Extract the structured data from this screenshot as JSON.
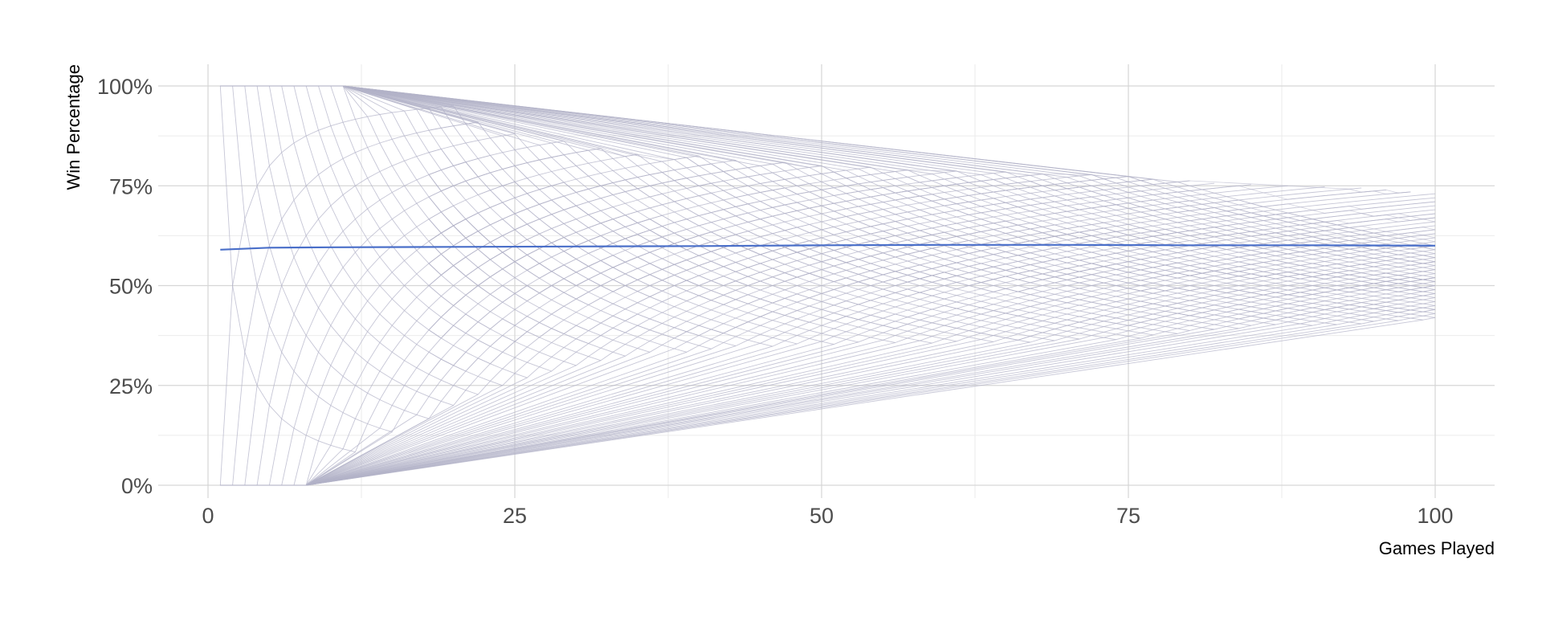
{
  "chart_data": {
    "type": "line",
    "title": "",
    "xlabel": "Games Played",
    "ylabel": "Win Percentage",
    "xlim": [
      -4,
      105
    ],
    "ylim": [
      -4,
      105
    ],
    "x_ticks": [
      0,
      25,
      50,
      75,
      100
    ],
    "x_tick_labels": [
      "0",
      "25",
      "50",
      "75",
      "100"
    ],
    "y_ticks": [
      0,
      25,
      50,
      75,
      100
    ],
    "y_tick_labels": [
      "0%",
      "25%",
      "50%",
      "75%",
      "100%"
    ],
    "grid": true,
    "legend": "none",
    "games_total": 100,
    "colors": {
      "envelope": "#b3b3c8",
      "mean": "#4a6fc9",
      "grid_major": "#d6d6d6",
      "grid_minor": "#ebebeb"
    },
    "series": [
      {
        "x": [
          1,
          5,
          10,
          20,
          30,
          40,
          50,
          60,
          70,
          80,
          90,
          100
        ],
        "values": [
          59,
          59.5,
          59.6,
          59.7,
          59.8,
          59.9,
          60.1,
          60.2,
          60.2,
          60.1,
          60.1,
          60
        ]
      }
    ],
    "envelope_upper": [
      [
        1,
        100
      ],
      [
        10,
        100
      ],
      [
        20,
        95
      ],
      [
        25,
        88
      ],
      [
        35,
        83
      ],
      [
        45,
        81
      ],
      [
        55,
        79
      ],
      [
        65,
        78
      ],
      [
        75,
        77
      ],
      [
        85,
        75
      ],
      [
        95,
        74
      ],
      [
        100,
        73
      ]
    ],
    "envelope_lower": [
      [
        1,
        0
      ],
      [
        8,
        0
      ],
      [
        12,
        8
      ],
      [
        18,
        17
      ],
      [
        25,
        25
      ],
      [
        35,
        33
      ],
      [
        45,
        35
      ],
      [
        55,
        36
      ],
      [
        65,
        36
      ],
      [
        75,
        37
      ],
      [
        85,
        40
      ],
      [
        95,
        41
      ],
      [
        100,
        42
      ]
    ]
  }
}
